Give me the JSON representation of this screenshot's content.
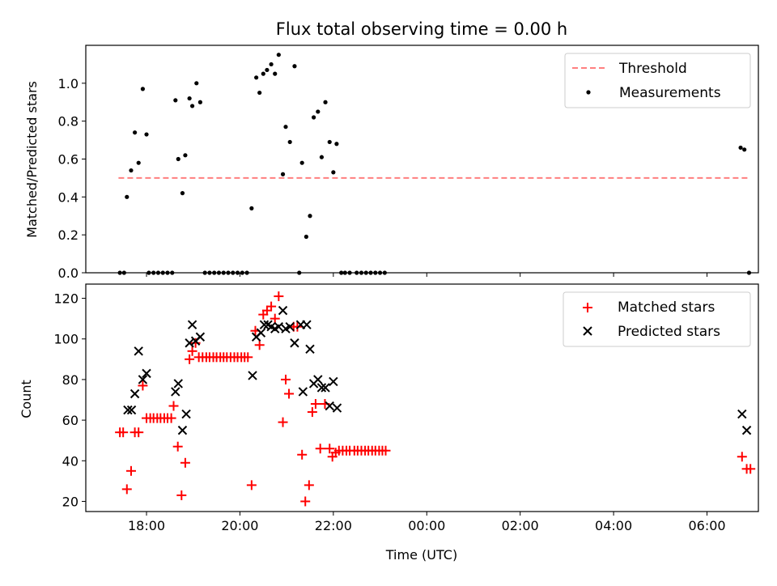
{
  "figure": {
    "title": "Flux total observing time = 0.00 h"
  },
  "chart_data": [
    {
      "type": "scatter",
      "panel": "top",
      "xlabel": "",
      "ylabel": "Matched/Predicted stars",
      "xlim": [
        16.7,
        31.1
      ],
      "ylim": [
        0.0,
        1.2
      ],
      "x_ticks": [
        18,
        20,
        22,
        24,
        26,
        28,
        30
      ],
      "y_ticks": [
        0.0,
        0.2,
        0.4,
        0.6,
        0.8,
        1.0
      ],
      "y_tick_labels": [
        "0.0",
        "0.2",
        "0.4",
        "0.6",
        "0.8",
        "1.0"
      ],
      "grid": false,
      "legend": {
        "placement": "top-right",
        "entries": [
          "Threshold",
          "Measurements"
        ]
      },
      "series": [
        {
          "name": "Threshold",
          "kind": "dashed-line",
          "color": "#ff7f7f",
          "points": [
            [
              17.4,
              0.5
            ],
            [
              30.9,
              0.5
            ]
          ]
        },
        {
          "name": "Measurements",
          "kind": "dot",
          "color": "#000000",
          "points": [
            [
              17.43,
              0.0
            ],
            [
              17.52,
              0.0
            ],
            [
              17.58,
              0.4
            ],
            [
              17.67,
              0.54
            ],
            [
              17.75,
              0.74
            ],
            [
              17.83,
              0.58
            ],
            [
              17.92,
              0.97
            ],
            [
              18.0,
              0.73
            ],
            [
              18.05,
              0.0
            ],
            [
              18.15,
              0.0
            ],
            [
              18.25,
              0.0
            ],
            [
              18.35,
              0.0
            ],
            [
              18.45,
              0.0
            ],
            [
              18.55,
              0.0
            ],
            [
              18.62,
              0.91
            ],
            [
              18.68,
              0.6
            ],
            [
              18.77,
              0.42
            ],
            [
              18.83,
              0.62
            ],
            [
              18.92,
              0.92
            ],
            [
              18.98,
              0.88
            ],
            [
              19.07,
              1.0
            ],
            [
              19.15,
              0.9
            ],
            [
              19.25,
              0.0
            ],
            [
              19.35,
              0.0
            ],
            [
              19.45,
              0.0
            ],
            [
              19.55,
              0.0
            ],
            [
              19.65,
              0.0
            ],
            [
              19.75,
              0.0
            ],
            [
              19.85,
              0.0
            ],
            [
              19.95,
              0.0
            ],
            [
              20.05,
              0.0
            ],
            [
              20.15,
              0.0
            ],
            [
              20.25,
              0.34
            ],
            [
              20.35,
              1.03
            ],
            [
              20.42,
              0.95
            ],
            [
              20.5,
              1.05
            ],
            [
              20.58,
              1.07
            ],
            [
              20.67,
              1.1
            ],
            [
              20.75,
              1.05
            ],
            [
              20.83,
              1.15
            ],
            [
              20.92,
              0.52
            ],
            [
              20.98,
              0.77
            ],
            [
              21.07,
              0.69
            ],
            [
              21.17,
              1.09
            ],
            [
              21.27,
              0.0
            ],
            [
              21.33,
              0.58
            ],
            [
              21.42,
              0.19
            ],
            [
              21.5,
              0.3
            ],
            [
              21.58,
              0.82
            ],
            [
              21.67,
              0.85
            ],
            [
              21.75,
              0.61
            ],
            [
              21.83,
              0.9
            ],
            [
              21.92,
              0.69
            ],
            [
              22.0,
              0.53
            ],
            [
              22.07,
              0.68
            ],
            [
              22.17,
              0.0
            ],
            [
              22.25,
              0.0
            ],
            [
              22.35,
              0.0
            ],
            [
              22.5,
              0.0
            ],
            [
              22.6,
              0.0
            ],
            [
              22.7,
              0.0
            ],
            [
              22.8,
              0.0
            ],
            [
              22.9,
              0.0
            ],
            [
              23.0,
              0.0
            ],
            [
              23.1,
              0.0
            ],
            [
              30.72,
              0.66
            ],
            [
              30.8,
              0.65
            ],
            [
              30.9,
              0.0
            ]
          ]
        }
      ]
    },
    {
      "type": "scatter",
      "panel": "bottom",
      "xlabel": "Time (UTC)",
      "ylabel": "Count",
      "xlim": [
        16.7,
        31.1
      ],
      "ylim": [
        15,
        127
      ],
      "x_ticks": [
        18,
        20,
        22,
        24,
        26,
        28,
        30
      ],
      "x_tick_labels": [
        "18:00",
        "20:00",
        "22:00",
        "00:00",
        "02:00",
        "04:00",
        "06:00"
      ],
      "y_ticks": [
        20,
        40,
        60,
        80,
        100,
        120
      ],
      "y_tick_labels": [
        "20",
        "40",
        "60",
        "80",
        "100",
        "120"
      ],
      "grid": false,
      "legend": {
        "placement": "top-right",
        "entries": [
          "Matched stars",
          "Predicted stars"
        ]
      },
      "series": [
        {
          "name": "Matched stars",
          "kind": "plus",
          "color": "#ff0000",
          "points": [
            [
              17.43,
              54
            ],
            [
              17.5,
              54
            ],
            [
              17.58,
              26
            ],
            [
              17.67,
              35
            ],
            [
              17.75,
              54
            ],
            [
              17.83,
              54
            ],
            [
              17.92,
              77
            ],
            [
              18.0,
              61
            ],
            [
              18.08,
              61
            ],
            [
              18.15,
              61
            ],
            [
              18.23,
              61
            ],
            [
              18.3,
              61
            ],
            [
              18.38,
              61
            ],
            [
              18.45,
              61
            ],
            [
              18.53,
              61
            ],
            [
              18.58,
              67
            ],
            [
              18.67,
              47
            ],
            [
              18.75,
              23
            ],
            [
              18.83,
              39
            ],
            [
              18.92,
              90
            ],
            [
              18.98,
              94
            ],
            [
              19.05,
              98
            ],
            [
              19.12,
              91
            ],
            [
              19.2,
              91
            ],
            [
              19.28,
              91
            ],
            [
              19.35,
              91
            ],
            [
              19.43,
              91
            ],
            [
              19.5,
              91
            ],
            [
              19.58,
              91
            ],
            [
              19.65,
              91
            ],
            [
              19.72,
              91
            ],
            [
              19.8,
              91
            ],
            [
              19.88,
              91
            ],
            [
              19.95,
              91
            ],
            [
              20.03,
              91
            ],
            [
              20.1,
              91
            ],
            [
              20.17,
              91
            ],
            [
              20.25,
              28
            ],
            [
              20.33,
              104
            ],
            [
              20.42,
              97
            ],
            [
              20.5,
              112
            ],
            [
              20.58,
              114
            ],
            [
              20.67,
              116
            ],
            [
              20.75,
              110
            ],
            [
              20.83,
              121
            ],
            [
              20.92,
              59
            ],
            [
              20.98,
              80
            ],
            [
              21.05,
              73
            ],
            [
              21.15,
              106
            ],
            [
              21.23,
              106
            ],
            [
              21.33,
              43
            ],
            [
              21.4,
              20
            ],
            [
              21.48,
              28
            ],
            [
              21.55,
              64
            ],
            [
              21.62,
              68
            ],
            [
              21.72,
              46
            ],
            [
              21.82,
              68
            ],
            [
              21.92,
              46
            ],
            [
              21.98,
              42
            ],
            [
              22.05,
              44
            ],
            [
              22.12,
              45
            ],
            [
              22.2,
              45
            ],
            [
              22.28,
              45
            ],
            [
              22.35,
              45
            ],
            [
              22.45,
              45
            ],
            [
              22.52,
              45
            ],
            [
              22.6,
              45
            ],
            [
              22.68,
              45
            ],
            [
              22.75,
              45
            ],
            [
              22.83,
              45
            ],
            [
              22.9,
              45
            ],
            [
              22.98,
              45
            ],
            [
              23.05,
              45
            ],
            [
              23.12,
              45
            ],
            [
              30.75,
              42
            ],
            [
              30.85,
              36
            ],
            [
              30.93,
              36
            ]
          ]
        },
        {
          "name": "Predicted stars",
          "kind": "x",
          "color": "#000000",
          "points": [
            [
              17.6,
              65
            ],
            [
              17.68,
              65
            ],
            [
              17.75,
              73
            ],
            [
              17.83,
              94
            ],
            [
              17.92,
              80
            ],
            [
              18.0,
              83
            ],
            [
              18.62,
              74
            ],
            [
              18.68,
              78
            ],
            [
              18.77,
              55
            ],
            [
              18.85,
              63
            ],
            [
              18.92,
              98
            ],
            [
              18.98,
              107
            ],
            [
              19.05,
              99
            ],
            [
              19.15,
              101
            ],
            [
              20.27,
              82
            ],
            [
              20.35,
              101
            ],
            [
              20.45,
              103
            ],
            [
              20.52,
              107
            ],
            [
              20.6,
              107
            ],
            [
              20.67,
              106
            ],
            [
              20.75,
              105
            ],
            [
              20.83,
              106
            ],
            [
              20.92,
              114
            ],
            [
              20.98,
              105
            ],
            [
              21.07,
              106
            ],
            [
              21.17,
              98
            ],
            [
              21.3,
              107
            ],
            [
              21.35,
              74
            ],
            [
              21.43,
              107
            ],
            [
              21.5,
              95
            ],
            [
              21.58,
              78
            ],
            [
              21.67,
              80
            ],
            [
              21.75,
              76
            ],
            [
              21.83,
              76
            ],
            [
              21.92,
              67
            ],
            [
              22.0,
              79
            ],
            [
              22.08,
              66
            ],
            [
              30.75,
              63
            ],
            [
              30.85,
              55
            ]
          ]
        }
      ]
    }
  ]
}
